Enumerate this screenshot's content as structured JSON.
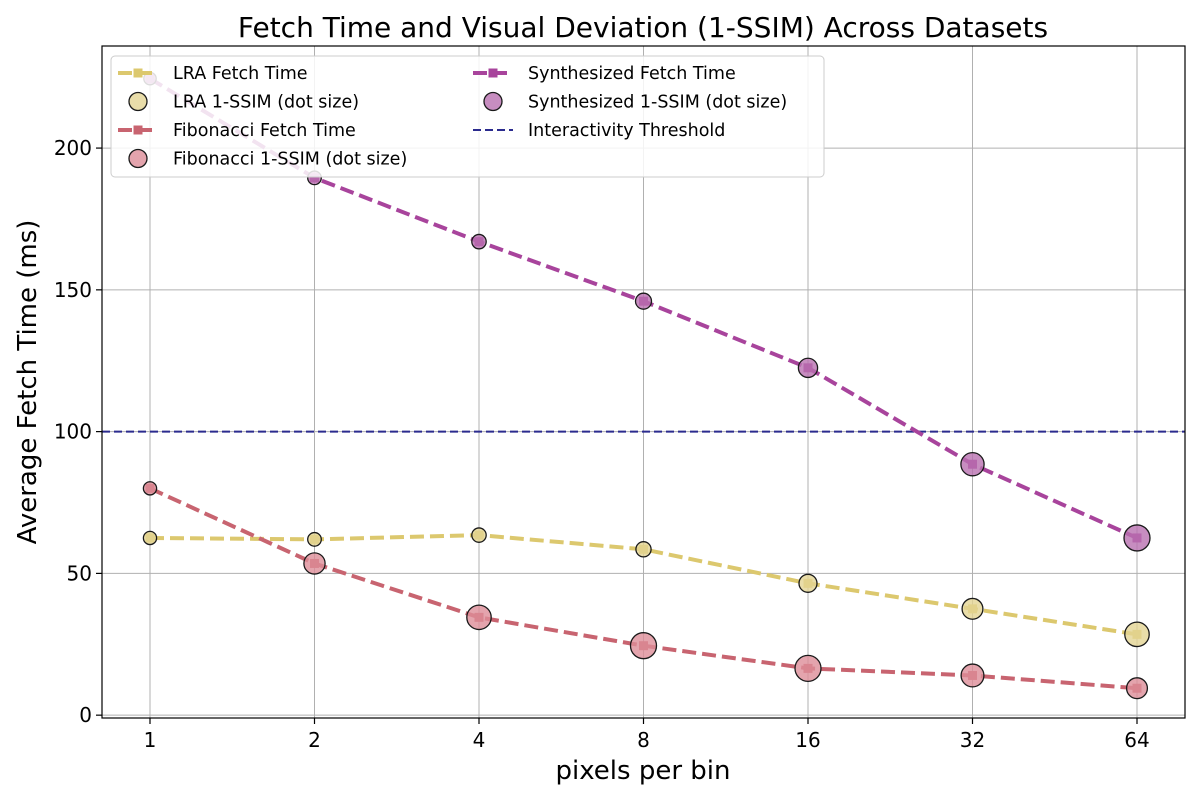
{
  "chart_data": {
    "type": "line",
    "title": "Fetch Time and Visual Deviation (1-SSIM) Across Datasets",
    "xlabel": "pixels per bin",
    "ylabel": "Average Fetch Time (ms)",
    "x_scale": "log2",
    "x": [
      1,
      2,
      4,
      8,
      16,
      32,
      64
    ],
    "x_tick_labels": [
      "1",
      "2",
      "4",
      "8",
      "16",
      "32",
      "64"
    ],
    "ylim": [
      -1,
      236
    ],
    "y_ticks": [
      0,
      50,
      100,
      150,
      200
    ],
    "y_tick_labels": [
      "0",
      "50",
      "100",
      "150",
      "200"
    ],
    "grid": true,
    "legend_position": "upper-left",
    "series": [
      {
        "name": "LRA Fetch Time",
        "dot_name": "LRA 1-SSIM (dot size)",
        "color": "#dcc86e",
        "marker_fill": "#e3d494",
        "values": [
          62.5,
          62,
          63.5,
          58.5,
          46.5,
          37.5,
          28.5
        ],
        "dot_size": [
          0.08,
          0.09,
          0.11,
          0.13,
          0.2,
          0.27,
          0.36
        ]
      },
      {
        "name": "Fibonacci Fetch Time",
        "dot_name": "Fibonacci 1-SSIM (dot size)",
        "color": "#c86470",
        "marker_fill": "#dd8d98",
        "values": [
          80,
          53.5,
          34.5,
          24.5,
          16.5,
          14,
          9.5
        ],
        "dot_size": [
          0.08,
          0.28,
          0.36,
          0.4,
          0.4,
          0.32,
          0.27
        ]
      },
      {
        "name": "Synthesized Fetch Time",
        "dot_name": "Synthesized 1-SSIM (dot size)",
        "color": "#a8449c",
        "marker_fill": "#b970b0",
        "values": [
          224.5,
          189.5,
          167,
          146,
          122.5,
          88.5,
          62.5
        ],
        "dot_size": [
          0.06,
          0.09,
          0.11,
          0.15,
          0.23,
          0.33,
          0.4
        ]
      }
    ],
    "threshold": {
      "name": "Interactivity Threshold",
      "value": 100,
      "color": "#2b2b8e"
    }
  }
}
